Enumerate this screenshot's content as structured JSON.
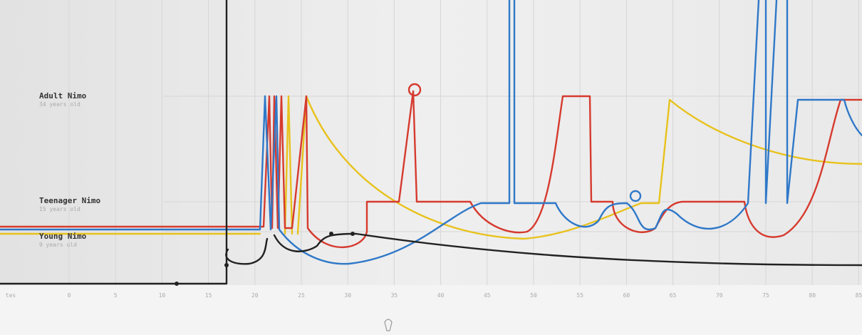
{
  "rows": [
    {
      "label": "Adult Nimo",
      "sublabel": "34 years old"
    },
    {
      "label": "Teenager Nimo",
      "sublabel": "15 years old"
    },
    {
      "label": "Young Nimo",
      "sublabel": "9 years old"
    }
  ],
  "axis": {
    "labels": [
      "tes",
      "0",
      "5",
      "10",
      "15",
      "20",
      "25",
      "30",
      "35",
      "40",
      "45",
      "50",
      "55",
      "60",
      "65",
      "70",
      "75",
      "80",
      "85"
    ]
  }
}
